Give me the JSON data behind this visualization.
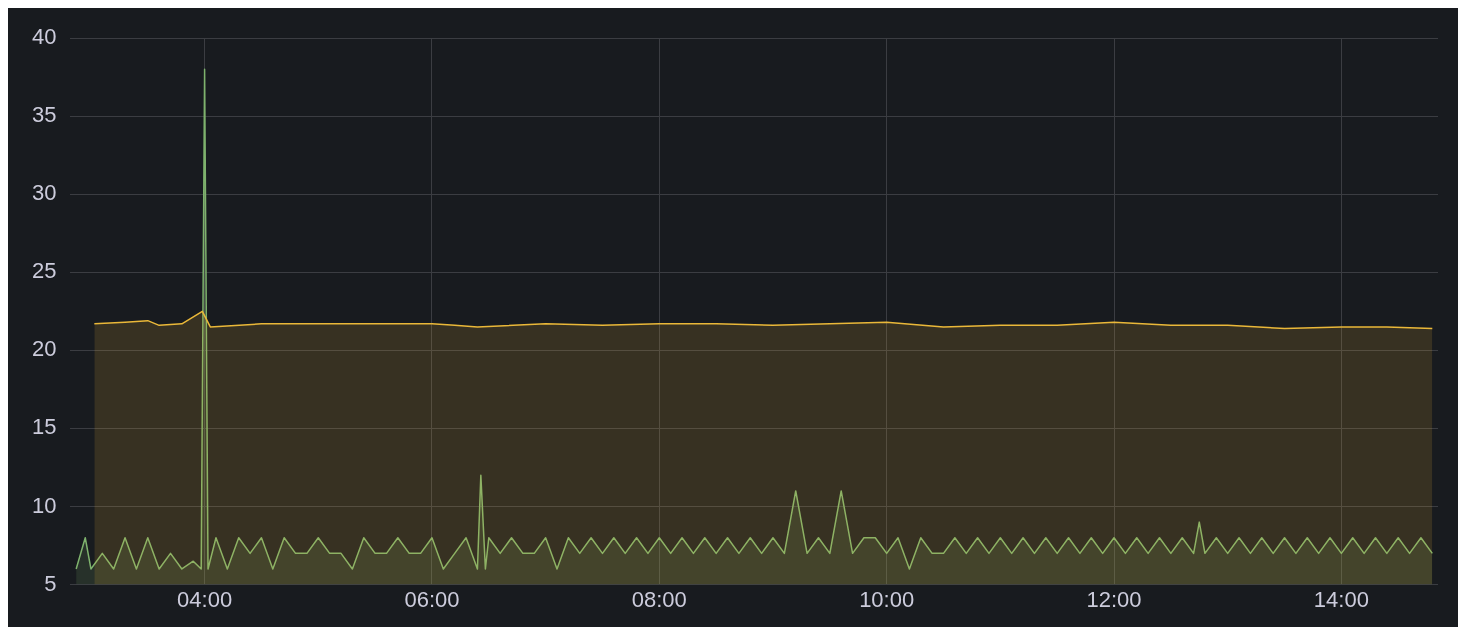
{
  "chart_data": {
    "type": "area",
    "xlim": [
      2.82,
      14.85
    ],
    "xticks": [
      {
        "value": 4,
        "label": "04:00"
      },
      {
        "value": 6,
        "label": "06:00"
      },
      {
        "value": 8,
        "label": "08:00"
      },
      {
        "value": 10,
        "label": "10:00"
      },
      {
        "value": 12,
        "label": "12:00"
      },
      {
        "value": 14,
        "label": "14:00"
      }
    ],
    "ylim": [
      5,
      40
    ],
    "yticks": [
      5,
      10,
      15,
      20,
      25,
      30,
      35,
      40
    ],
    "grid": true,
    "legend": false,
    "marker": "none",
    "series": [
      {
        "color": "#eab839",
        "x": [
          3.03,
          3.3,
          3.5,
          3.6,
          3.8,
          3.98,
          4.05,
          4.5,
          5.0,
          6.0,
          6.2,
          6.4,
          7.0,
          7.5,
          8.0,
          8.5,
          9.0,
          9.5,
          10.0,
          10.5,
          11.0,
          11.5,
          12.0,
          12.5,
          13.0,
          13.5,
          14.0,
          14.4,
          14.8
        ],
        "values": [
          21.7,
          21.8,
          21.9,
          21.6,
          21.7,
          22.5,
          21.5,
          21.7,
          21.7,
          21.7,
          21.6,
          21.5,
          21.7,
          21.6,
          21.7,
          21.7,
          21.6,
          21.7,
          21.8,
          21.5,
          21.6,
          21.6,
          21.8,
          21.6,
          21.6,
          21.4,
          21.5,
          21.5,
          21.4
        ]
      },
      {
        "color": "#7eb26d",
        "x": [
          2.87,
          2.95,
          3.0,
          3.1,
          3.2,
          3.3,
          3.4,
          3.5,
          3.6,
          3.7,
          3.8,
          3.9,
          3.97,
          4.0,
          4.03,
          4.1,
          4.2,
          4.3,
          4.4,
          4.5,
          4.6,
          4.7,
          4.8,
          4.9,
          5.0,
          5.1,
          5.2,
          5.3,
          5.4,
          5.5,
          5.6,
          5.7,
          5.8,
          5.9,
          6.0,
          6.1,
          6.2,
          6.3,
          6.4,
          6.43,
          6.47,
          6.5,
          6.6,
          6.7,
          6.8,
          6.9,
          7.0,
          7.1,
          7.2,
          7.3,
          7.4,
          7.5,
          7.6,
          7.7,
          7.8,
          7.9,
          8.0,
          8.1,
          8.2,
          8.3,
          8.4,
          8.5,
          8.6,
          8.7,
          8.8,
          8.9,
          9.0,
          9.1,
          9.2,
          9.3,
          9.4,
          9.5,
          9.6,
          9.7,
          9.8,
          9.9,
          10.0,
          10.1,
          10.2,
          10.3,
          10.4,
          10.5,
          10.6,
          10.7,
          10.8,
          10.9,
          11.0,
          11.1,
          11.2,
          11.3,
          11.4,
          11.5,
          11.6,
          11.7,
          11.8,
          11.9,
          12.0,
          12.1,
          12.2,
          12.3,
          12.4,
          12.5,
          12.6,
          12.7,
          12.75,
          12.8,
          12.9,
          13.0,
          13.1,
          13.2,
          13.3,
          13.4,
          13.5,
          13.6,
          13.7,
          13.8,
          13.9,
          14.0,
          14.1,
          14.2,
          14.3,
          14.4,
          14.5,
          14.6,
          14.7,
          14.8
        ],
        "values": [
          6,
          8,
          6,
          7,
          6,
          8,
          6,
          8,
          6,
          7,
          6,
          6.5,
          6,
          38,
          6,
          8,
          6,
          8,
          7,
          8,
          6,
          8,
          7,
          7,
          8,
          7,
          7,
          6,
          8,
          7,
          7,
          8,
          7,
          7,
          8,
          6,
          7,
          8,
          6,
          12,
          6,
          8,
          7,
          8,
          7,
          7,
          8,
          6,
          8,
          7,
          8,
          7,
          8,
          7,
          8,
          7,
          8,
          7,
          8,
          7,
          8,
          7,
          8,
          7,
          8,
          7,
          8,
          7,
          11,
          7,
          8,
          7,
          11,
          7,
          8,
          8,
          7,
          8,
          6,
          8,
          7,
          7,
          8,
          7,
          8,
          7,
          8,
          7,
          8,
          7,
          8,
          7,
          8,
          7,
          8,
          7,
          8,
          7,
          8,
          7,
          8,
          7,
          8,
          7,
          9,
          7,
          8,
          7,
          8,
          7,
          8,
          7,
          8,
          7,
          8,
          7,
          8,
          7,
          8,
          7,
          8,
          7,
          8,
          7,
          8,
          7
        ]
      }
    ]
  }
}
